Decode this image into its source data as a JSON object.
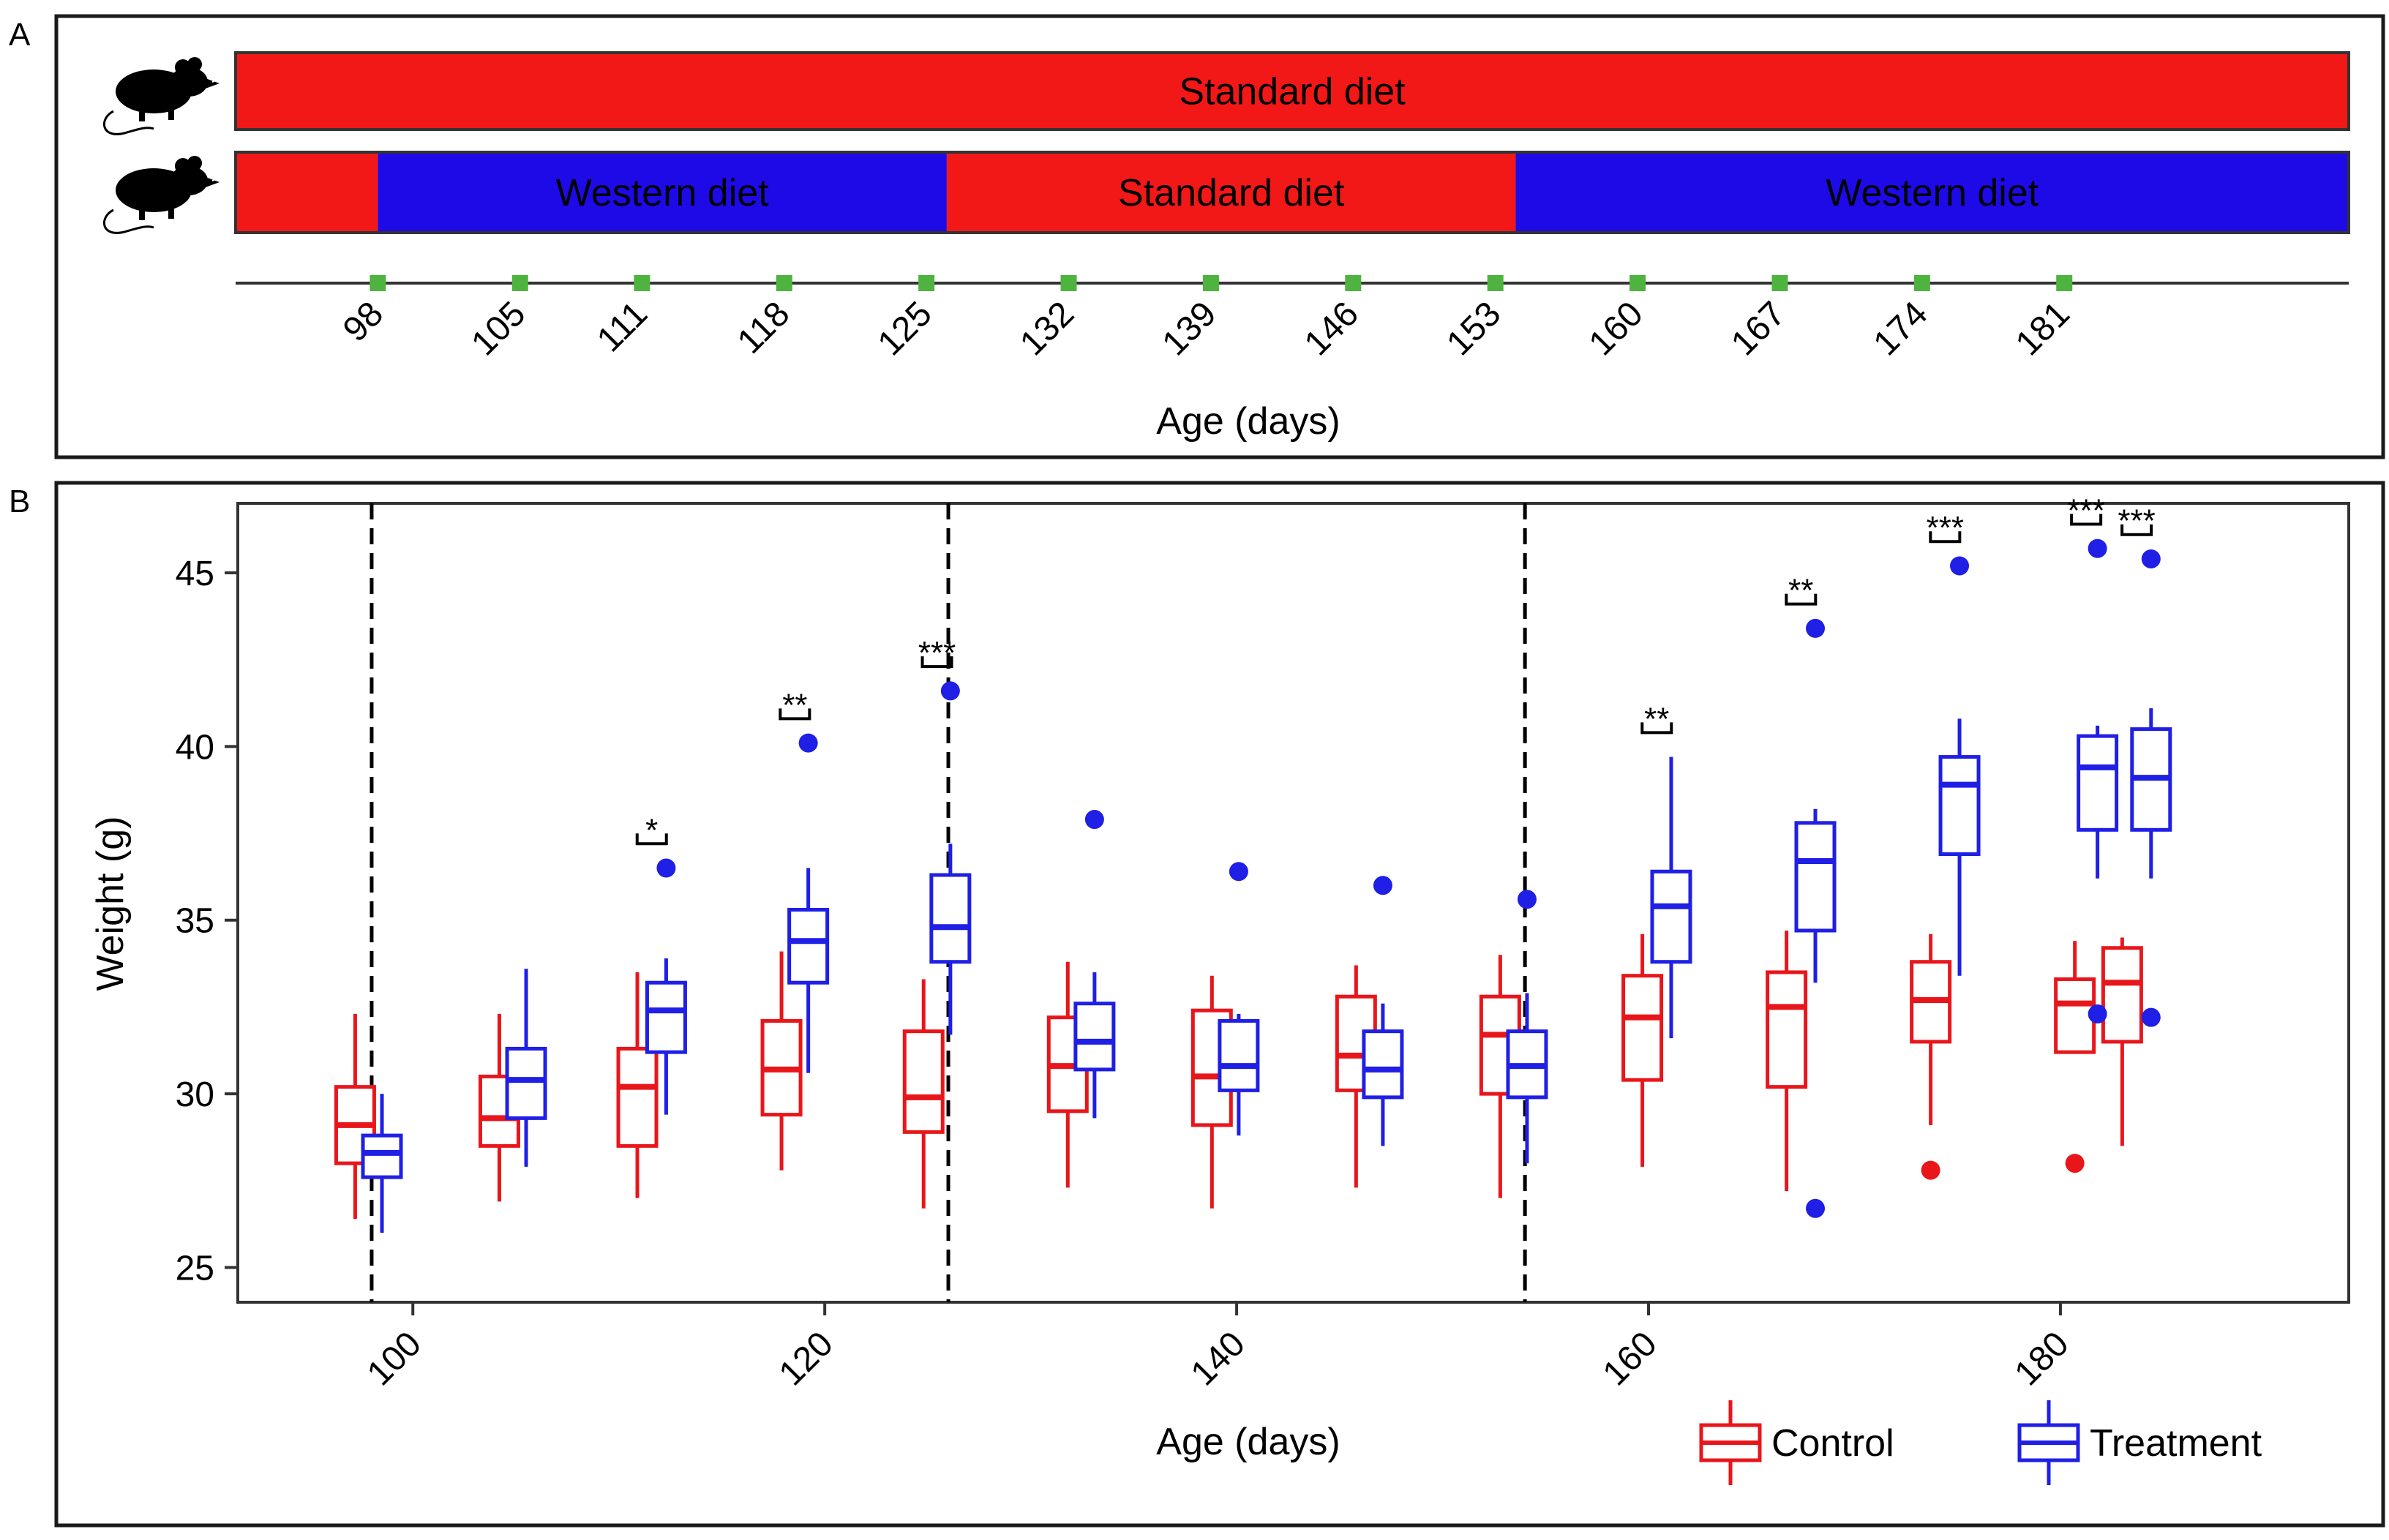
{
  "panels": {
    "a_label": "A",
    "b_label": "B"
  },
  "timeline": {
    "standard_row": [
      {
        "start": 91,
        "end": 195,
        "label": "Standard diet",
        "color": "#f21818"
      }
    ],
    "treatment_row": [
      {
        "start": 91,
        "end": 98,
        "label": "",
        "color": "#f21818"
      },
      {
        "start": 98,
        "end": 126,
        "label": "Western diet",
        "color": "#1d0ae6"
      },
      {
        "start": 126,
        "end": 154,
        "label": "Standard diet",
        "color": "#f21818"
      },
      {
        "start": 154,
        "end": 195,
        "label": "Western diet",
        "color": "#1d0ae6"
      }
    ],
    "sample_days": [
      98,
      105,
      111,
      118,
      125,
      132,
      139,
      146,
      153,
      160,
      167,
      174,
      181
    ],
    "marker_color": "#4fb33f",
    "xlabel": "Age (days)",
    "icons": [
      "mouse-icon",
      "mouse-icon"
    ]
  },
  "chart_data": {
    "type": "box",
    "xlabel": "Age (days)",
    "ylabel": "Weight (g)",
    "xlim": [
      91.5,
      194
    ],
    "ylim": [
      24,
      47
    ],
    "xticks": [
      100,
      120,
      140,
      160,
      180
    ],
    "yticks": [
      25,
      30,
      35,
      40,
      45
    ],
    "diet_switch_lines": [
      98,
      126,
      154
    ],
    "colors": {
      "Control": "#e8161b",
      "Treatment": "#1f1fe6"
    },
    "legend": {
      "position": "bottom-right",
      "entries": [
        "Control",
        "Treatment"
      ]
    },
    "series": [
      {
        "name": "Control",
        "boxes": [
          {
            "x": 97.2,
            "min": 26.4,
            "q1": 28.0,
            "median": 29.1,
            "q3": 30.2,
            "max": 32.3,
            "outliers": []
          },
          {
            "x": 104.2,
            "min": 26.9,
            "q1": 28.5,
            "median": 29.3,
            "q3": 30.5,
            "max": 32.3,
            "outliers": []
          },
          {
            "x": 110.9,
            "min": 27.0,
            "q1": 28.5,
            "median": 30.2,
            "q3": 31.3,
            "max": 33.5,
            "outliers": []
          },
          {
            "x": 117.9,
            "min": 27.8,
            "q1": 29.4,
            "median": 30.7,
            "q3": 32.1,
            "max": 34.1,
            "outliers": []
          },
          {
            "x": 124.8,
            "min": 26.7,
            "q1": 28.9,
            "median": 29.9,
            "q3": 31.8,
            "max": 33.3,
            "outliers": []
          },
          {
            "x": 131.8,
            "min": 27.3,
            "q1": 29.5,
            "median": 30.8,
            "q3": 32.2,
            "max": 33.8,
            "outliers": []
          },
          {
            "x": 138.8,
            "min": 26.7,
            "q1": 29.1,
            "median": 30.5,
            "q3": 32.4,
            "max": 33.4,
            "outliers": []
          },
          {
            "x": 145.8,
            "min": 27.3,
            "q1": 30.1,
            "median": 31.1,
            "q3": 32.8,
            "max": 33.7,
            "outliers": []
          },
          {
            "x": 152.8,
            "min": 27.0,
            "q1": 30.0,
            "median": 31.7,
            "q3": 32.8,
            "max": 34.0,
            "outliers": []
          },
          {
            "x": 159.7,
            "min": 27.9,
            "q1": 30.4,
            "median": 32.2,
            "q3": 33.4,
            "max": 34.6,
            "outliers": []
          },
          {
            "x": 166.7,
            "min": 27.2,
            "q1": 30.2,
            "median": 32.5,
            "q3": 33.5,
            "max": 34.7,
            "outliers": []
          },
          {
            "x": 173.7,
            "min": 29.1,
            "q1": 31.5,
            "median": 32.7,
            "q3": 33.8,
            "max": 34.6,
            "outliers": [
              27.8
            ]
          },
          {
            "x": 180.7,
            "min": 31.2,
            "q1": 31.2,
            "median": 32.6,
            "q3": 33.3,
            "max": 34.4,
            "outliers": [
              28.0
            ]
          },
          {
            "x": 183.0,
            "min": 28.5,
            "q1": 31.5,
            "median": 33.2,
            "q3": 34.2,
            "max": 34.5,
            "outliers": []
          }
        ]
      },
      {
        "name": "Treatment",
        "boxes": [
          {
            "x": 98.5,
            "min": 26.0,
            "q1": 27.6,
            "median": 28.3,
            "q3": 28.8,
            "max": 30.0,
            "outliers": []
          },
          {
            "x": 105.5,
            "min": 27.9,
            "q1": 29.3,
            "median": 30.4,
            "q3": 31.3,
            "max": 33.6,
            "outliers": []
          },
          {
            "x": 112.3,
            "min": 29.4,
            "q1": 31.2,
            "median": 32.4,
            "q3": 33.2,
            "max": 33.9,
            "outliers": [
              36.5
            ]
          },
          {
            "x": 119.2,
            "min": 30.6,
            "q1": 33.2,
            "median": 34.4,
            "q3": 35.3,
            "max": 36.5,
            "outliers": [
              40.1
            ]
          },
          {
            "x": 126.1,
            "min": 31.7,
            "q1": 33.8,
            "median": 34.8,
            "q3": 36.3,
            "max": 37.2,
            "outliers": [
              41.6
            ]
          },
          {
            "x": 133.1,
            "min": 29.3,
            "q1": 30.7,
            "median": 31.5,
            "q3": 32.6,
            "max": 33.5,
            "outliers": [
              37.9
            ]
          },
          {
            "x": 140.1,
            "min": 28.8,
            "q1": 30.1,
            "median": 30.8,
            "q3": 32.1,
            "max": 32.3,
            "outliers": [
              36.4
            ]
          },
          {
            "x": 147.1,
            "min": 28.5,
            "q1": 29.9,
            "median": 30.7,
            "q3": 31.8,
            "max": 32.6,
            "outliers": [
              36.0
            ]
          },
          {
            "x": 154.1,
            "min": 28.0,
            "q1": 29.9,
            "median": 30.8,
            "q3": 31.8,
            "max": 32.9,
            "outliers": [
              35.6
            ]
          },
          {
            "x": 161.1,
            "min": 31.6,
            "q1": 33.8,
            "median": 35.4,
            "q3": 36.4,
            "max": 39.7,
            "outliers": []
          },
          {
            "x": 168.1,
            "min": 33.2,
            "q1": 34.7,
            "median": 36.7,
            "q3": 37.8,
            "max": 38.2,
            "outliers": [
              43.4,
              26.7
            ]
          },
          {
            "x": 175.1,
            "min": 33.4,
            "q1": 36.9,
            "median": 38.9,
            "q3": 39.7,
            "max": 40.8,
            "outliers": [
              45.2
            ]
          },
          {
            "x": 181.8,
            "min": 36.2,
            "q1": 37.6,
            "median": 39.4,
            "q3": 40.3,
            "max": 40.6,
            "outliers": [
              45.7,
              32.3
            ]
          },
          {
            "x": 184.4,
            "min": 36.2,
            "q1": 37.6,
            "median": 39.1,
            "q3": 40.5,
            "max": 41.1,
            "outliers": [
              45.4,
              32.2
            ]
          }
        ]
      }
    ],
    "significance": [
      {
        "x": 111.6,
        "y": 37.2,
        "label": "*"
      },
      {
        "x": 118.55,
        "y": 40.8,
        "label": "**"
      },
      {
        "x": 125.45,
        "y": 42.3,
        "label": "***"
      },
      {
        "x": 160.4,
        "y": 40.4,
        "label": "**"
      },
      {
        "x": 167.4,
        "y": 44.1,
        "label": "**"
      },
      {
        "x": 174.4,
        "y": 45.9,
        "label": "***"
      },
      {
        "x": 181.25,
        "y": 46.4,
        "label": "***"
      },
      {
        "x": 183.7,
        "y": 46.1,
        "label": "***"
      }
    ]
  }
}
